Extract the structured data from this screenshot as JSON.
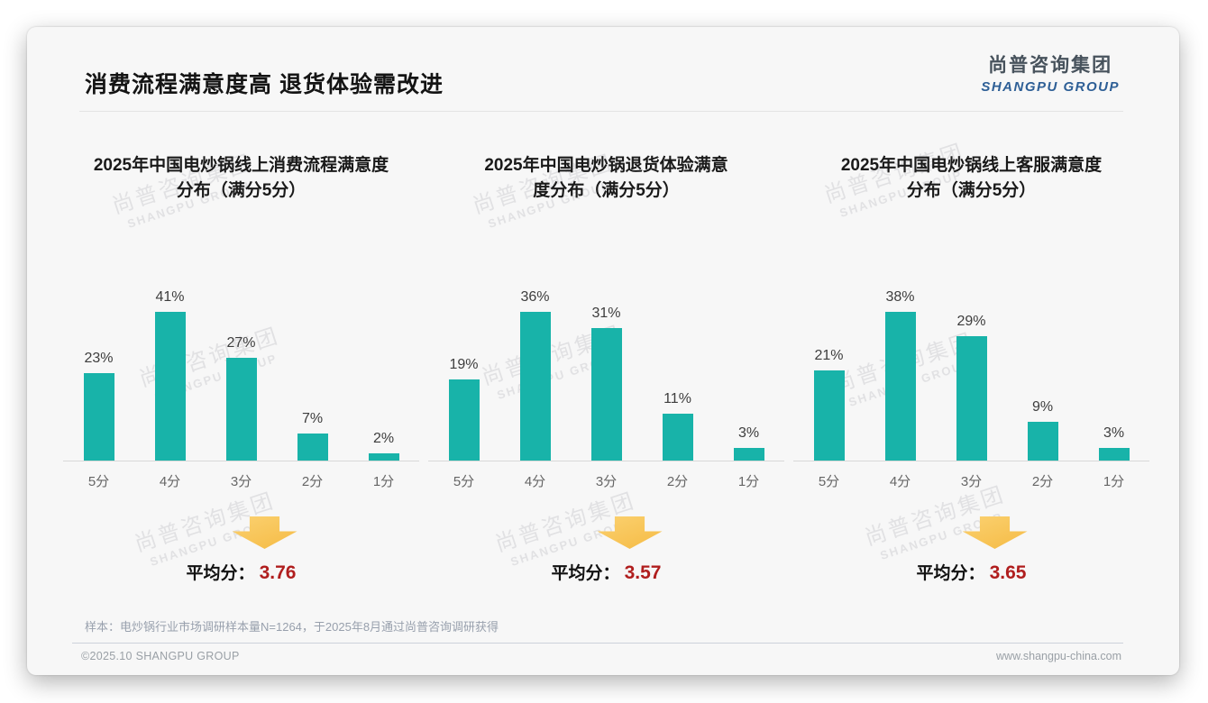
{
  "colors": {
    "bar": "#18b3a9",
    "arrow_light": "#fbd170",
    "arrow_dark": "#f5bb45",
    "average_value": "#b01e1e"
  },
  "header": {
    "title": "消费流程满意度高 退货体验需改进",
    "logo_cn": "尚普咨询集团",
    "logo_en": "SHANGPU GROUP"
  },
  "watermark": {
    "cn": "尚普咨询集团",
    "en": "SHANGPU GROUP"
  },
  "chart_data": [
    {
      "type": "bar",
      "title": "2025年中国电炒锅线上消费流程满意度分布（满分5分）",
      "title_lines": [
        "2025年中国电炒锅线上消费流程满意度",
        "分布（满分5分）"
      ],
      "categories": [
        "5分",
        "4分",
        "3分",
        "2分",
        "1分"
      ],
      "values": [
        23,
        41,
        27,
        7,
        2
      ],
      "unit": "%",
      "ylim": [
        0,
        45
      ],
      "grid": false,
      "legend": "none",
      "average_label": "平均分：",
      "average": "3.76"
    },
    {
      "type": "bar",
      "title": "2025年中国电炒锅退货体验满意度分布（满分5分）",
      "title_lines": [
        "2025年中国电炒锅退货体验满意",
        "度分布（满分5分）"
      ],
      "categories": [
        "5分",
        "4分",
        "3分",
        "2分",
        "1分"
      ],
      "values": [
        19,
        36,
        31,
        11,
        3
      ],
      "unit": "%",
      "ylim": [
        0,
        40
      ],
      "grid": false,
      "legend": "none",
      "average_label": "平均分：",
      "average": "3.57"
    },
    {
      "type": "bar",
      "title": "2025年中国电炒锅线上客服满意度分布（满分5分）",
      "title_lines": [
        "2025年中国电炒锅线上客服满意度",
        "分布（满分5分）"
      ],
      "categories": [
        "5分",
        "4分",
        "3分",
        "2分",
        "1分"
      ],
      "values": [
        21,
        38,
        29,
        9,
        3
      ],
      "unit": "%",
      "ylim": [
        0,
        40
      ],
      "grid": false,
      "legend": "none",
      "average_label": "平均分：",
      "average": "3.65"
    }
  ],
  "footer": {
    "sample_note": "样本：电炒锅行业市场调研样本量N=1264，于2025年8月通过尚普咨询调研获得",
    "copyright": "©2025.10 SHANGPU GROUP",
    "website": "www.shangpu-china.com"
  }
}
